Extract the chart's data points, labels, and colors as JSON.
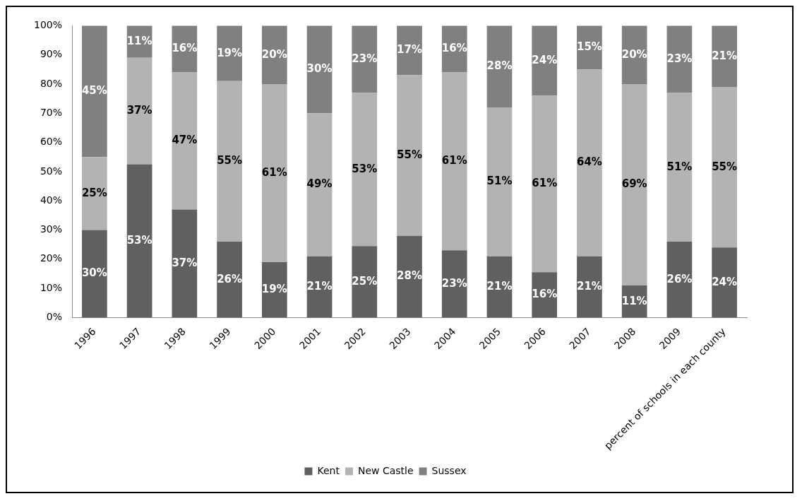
{
  "chart_data": {
    "type": "bar",
    "stacked": true,
    "categories": [
      "1996",
      "1997",
      "1998",
      "1999",
      "2000",
      "2001",
      "2002",
      "2003",
      "2004",
      "2005",
      "2006",
      "2007",
      "2008",
      "2009",
      "percent of schools in each county"
    ],
    "series": [
      {
        "name": "Kent",
        "color": "#606060",
        "values": [
          30,
          52.5,
          37,
          26,
          19,
          21,
          24.5,
          28,
          23,
          21,
          15.5,
          21,
          11,
          26,
          24
        ],
        "value_labels": [
          "30%",
          "53%",
          "37%",
          "26%",
          "19%",
          "21%",
          "25%",
          "28%",
          "23%",
          "21%",
          "16%",
          "21%",
          "11%",
          "26%",
          "24%"
        ]
      },
      {
        "name": "New Castle",
        "color": "#b3b3b3",
        "values": [
          25,
          36.5,
          47,
          55,
          61,
          49,
          52.5,
          55,
          61,
          51,
          60.5,
          64,
          69,
          51,
          55
        ],
        "value_labels": [
          "25%",
          "37%",
          "47%",
          "55%",
          "61%",
          "49%",
          "53%",
          "55%",
          "61%",
          "51%",
          "61%",
          "64%",
          "69%",
          "51%",
          "55%"
        ]
      },
      {
        "name": "Sussex",
        "color": "#808080",
        "values": [
          45,
          11,
          16,
          19,
          20,
          30,
          23,
          17,
          16,
          28,
          24,
          15,
          20,
          23,
          21
        ],
        "value_labels": [
          "45%",
          "11%",
          "16%",
          "19%",
          "20%",
          "30%",
          "23%",
          "17%",
          "16%",
          "28%",
          "24%",
          "15%",
          "20%",
          "23%",
          "21%"
        ]
      }
    ],
    "ylim": [
      0,
      100
    ],
    "yticks": [
      {
        "value": 0,
        "label": "0%"
      },
      {
        "value": 10,
        "label": "10%"
      },
      {
        "value": 20,
        "label": "20%"
      },
      {
        "value": 30,
        "label": "30%"
      },
      {
        "value": 40,
        "label": "40%"
      },
      {
        "value": 50,
        "label": "50%"
      },
      {
        "value": 60,
        "label": "60%"
      },
      {
        "value": 70,
        "label": "70%"
      },
      {
        "value": 80,
        "label": "80%"
      },
      {
        "value": 90,
        "label": "90%"
      },
      {
        "value": 100,
        "label": "100%"
      }
    ],
    "grid": false,
    "legend": "bottom"
  }
}
